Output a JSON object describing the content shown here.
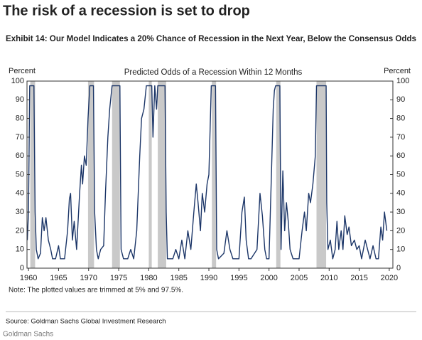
{
  "page_title": "The risk of a recession is set to drop",
  "chart_data": {
    "type": "line",
    "title": "Exhibit 14: Our Model Indicates a 20% Chance of Recession in the Next Year, Below the Consensus Odds",
    "ylabel": "Percent",
    "y2label": "Percent",
    "note": "Note: The plotted values are trimmed at 5% and 97.5%.",
    "source": "Source: Goldman Sachs Global Investment Research",
    "xlim": [
      1959.75,
      2020.6
    ],
    "xticks": [
      1960,
      1965,
      1970,
      1975,
      1980,
      1985,
      1990,
      1995,
      2000,
      2005,
      2010,
      2015,
      2020
    ],
    "ylim": [
      0,
      100
    ],
    "yticks": [
      0,
      10,
      20,
      30,
      40,
      50,
      60,
      70,
      80,
      90,
      100
    ],
    "y2lim": [
      0,
      100
    ],
    "y2ticks": [
      0,
      10,
      20,
      30,
      40,
      50,
      60,
      70,
      80,
      90,
      100
    ],
    "shade_color": "#c9c9c9",
    "shaded_periods": [
      [
        1960.3,
        1961.1
      ],
      [
        1969.9,
        1970.9
      ],
      [
        1973.9,
        1975.2
      ],
      [
        1980.0,
        1980.5
      ],
      [
        1981.5,
        1982.9
      ],
      [
        1990.5,
        1991.2
      ],
      [
        2001.2,
        2001.9
      ],
      [
        2007.9,
        2009.5
      ]
    ],
    "x": [
      1959.8,
      1960.0,
      1960.2,
      1960.9,
      1961.1,
      1961.3,
      1961.6,
      1962.0,
      1962.3,
      1962.6,
      1962.9,
      1963.3,
      1963.7,
      1964.0,
      1964.5,
      1965.0,
      1965.3,
      1966.0,
      1966.5,
      1966.8,
      1967.0,
      1967.3,
      1967.6,
      1968.0,
      1968.5,
      1968.8,
      1969.0,
      1969.3,
      1969.6,
      1969.9,
      1970.2,
      1970.8,
      1971.0,
      1971.3,
      1971.6,
      1972.0,
      1972.5,
      1972.8,
      1973.2,
      1973.5,
      1973.9,
      1975.2,
      1975.4,
      1975.8,
      1976.5,
      1977.0,
      1977.5,
      1978.0,
      1978.5,
      1978.8,
      1979.2,
      1979.6,
      1980.5,
      1980.7,
      1981.0,
      1981.3,
      1981.5,
      1982.7,
      1982.9,
      1983.1,
      1984.0,
      1984.5,
      1985.0,
      1985.5,
      1986.0,
      1986.5,
      1987.0,
      1987.5,
      1987.9,
      1988.2,
      1988.6,
      1988.9,
      1989.3,
      1989.7,
      1990.0,
      1990.4,
      1991.1,
      1991.3,
      1991.6,
      1992.5,
      1993.0,
      1993.5,
      1994.0,
      1995.0,
      1995.5,
      1995.9,
      1996.2,
      1996.6,
      1997.0,
      1998.0,
      1998.5,
      1998.9,
      1999.3,
      1999.6,
      2000.0,
      2000.4,
      2000.7,
      2000.9,
      2001.1,
      2001.8,
      2002.0,
      2002.3,
      2002.6,
      2002.9,
      2003.2,
      2003.5,
      2004.0,
      2005.0,
      2005.5,
      2005.9,
      2006.2,
      2006.6,
      2006.9,
      2007.3,
      2007.7,
      2007.9,
      2009.5,
      2009.6,
      2009.8,
      2010.2,
      2010.6,
      2011.0,
      2011.3,
      2011.6,
      2012.0,
      2012.3,
      2012.6,
      2013.0,
      2013.3,
      2013.7,
      2014.2,
      2014.6,
      2015.0,
      2015.4,
      2016.0,
      2016.4,
      2016.8,
      2017.3,
      2017.8,
      2018.2,
      2018.6,
      2018.9,
      2019.2,
      2019.4,
      2019.6
    ],
    "series": [
      {
        "name": "Predicted Odds of a Recession  Within 12 Months",
        "color": "#1c3668",
        "values": [
          15,
          30,
          97.5,
          97.5,
          30,
          10,
          5,
          8,
          27,
          20,
          27,
          15,
          10,
          5,
          5,
          12,
          5,
          5,
          20,
          37,
          40,
          15,
          25,
          10,
          40,
          55,
          45,
          60,
          55,
          80,
          97.5,
          97.5,
          30,
          10,
          5,
          10,
          12,
          40,
          70,
          85,
          97.5,
          97.5,
          10,
          5,
          5,
          10,
          5,
          20,
          60,
          80,
          85,
          97.5,
          97.5,
          70,
          97.5,
          85,
          97.5,
          97.5,
          30,
          5,
          5,
          10,
          5,
          15,
          5,
          20,
          10,
          30,
          45,
          35,
          20,
          40,
          30,
          45,
          50,
          97.5,
          97.5,
          10,
          5,
          8,
          20,
          10,
          5,
          5,
          30,
          38,
          15,
          5,
          5,
          10,
          40,
          28,
          10,
          5,
          5,
          50,
          85,
          95,
          97.5,
          97.5,
          10,
          52,
          20,
          35,
          25,
          10,
          5,
          5,
          20,
          30,
          20,
          40,
          35,
          45,
          60,
          97.5,
          97.5,
          35,
          10,
          15,
          5,
          10,
          25,
          10,
          20,
          10,
          28,
          18,
          22,
          12,
          15,
          10,
          12,
          5,
          15,
          10,
          5,
          12,
          5,
          5,
          22,
          15,
          30,
          25,
          20
        ]
      }
    ]
  },
  "footer": "Goldman Sachs"
}
